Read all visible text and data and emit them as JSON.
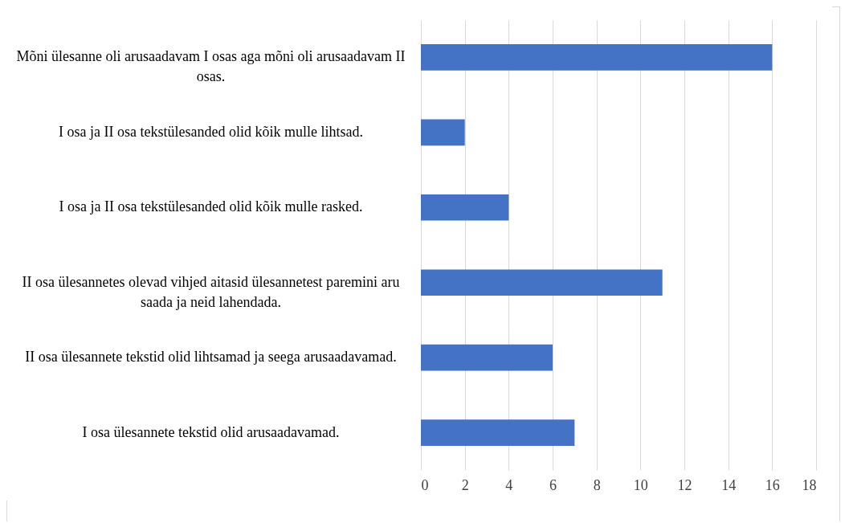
{
  "chart_data": {
    "type": "bar",
    "orientation": "horizontal",
    "categories": [
      "Mõni ülesanne oli arusaadavam I osas aga mõni oli arusaadavam II osas.",
      "I osa ja II osa tekstülesanded olid kõik mulle lihtsad.",
      "I osa ja II osa tekstülesanded olid kõik mulle rasked.",
      "II osa ülesannetes olevad vihjed aitasid ülesannetest paremini aru saada ja neid lahendada.",
      "II osa ülesannete tekstid olid lihtsamad ja seega arusaadavamad.",
      "I osa ülesannete tekstid olid arusaadavamad."
    ],
    "values": [
      16,
      2,
      4,
      11,
      6,
      7
    ],
    "color": "#4472c4",
    "xlim": [
      0,
      18
    ],
    "xticks": [
      0,
      2,
      4,
      6,
      8,
      10,
      12,
      14,
      16,
      18
    ],
    "grid": "x"
  }
}
